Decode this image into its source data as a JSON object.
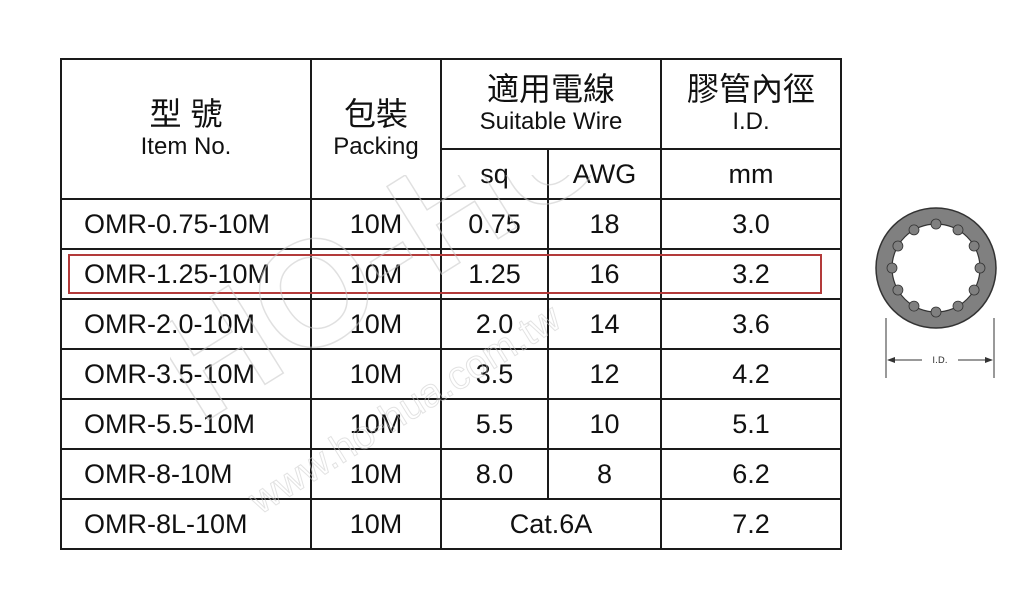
{
  "header": {
    "item": {
      "zh": "型 號",
      "en": "Item No."
    },
    "packing": {
      "zh": "包裝",
      "en": "Packing"
    },
    "wire": {
      "zh": "適用電線",
      "en": "Suitable Wire",
      "sq": "sq",
      "awg": "AWG"
    },
    "id": {
      "zh": "膠管內徑",
      "en": "I.D.",
      "unit": "mm"
    }
  },
  "rows": [
    {
      "item": "OMR-0.75-10M",
      "packing": "10M",
      "sq": "0.75",
      "awg": "18",
      "id": "3.0"
    },
    {
      "item": "OMR-1.25-10M",
      "packing": "10M",
      "sq": "1.25",
      "awg": "16",
      "id": "3.2"
    },
    {
      "item": "OMR-2.0-10M",
      "packing": "10M",
      "sq": "2.0",
      "awg": "14",
      "id": "3.6"
    },
    {
      "item": "OMR-3.5-10M",
      "packing": "10M",
      "sq": "3.5",
      "awg": "12",
      "id": "4.2"
    },
    {
      "item": "OMR-5.5-10M",
      "packing": "10M",
      "sq": "5.5",
      "awg": "10",
      "id": "5.1"
    },
    {
      "item": "OMR-8-10M",
      "packing": "10M",
      "sq": "8.0",
      "awg": "8",
      "id": "6.2"
    },
    {
      "item": "OMR-8L-10M",
      "packing": "10M",
      "wire": "Cat.6A",
      "id": "7.2"
    }
  ],
  "highlighted_row": "OMR-1.25-10M",
  "watermark": {
    "brand": "HO-HUA",
    "url": "www.ho-hua.com.tw"
  },
  "diagram": {
    "label": "I.D."
  },
  "colors": {
    "header_text": "#1f2fa8",
    "highlight_border": "#b33a3a",
    "grid": "#1a1a1a"
  }
}
